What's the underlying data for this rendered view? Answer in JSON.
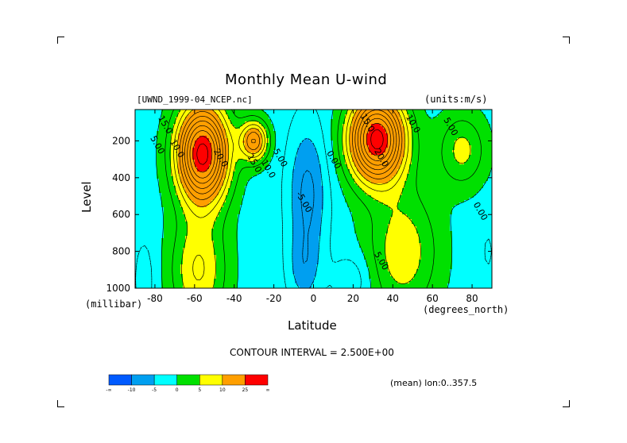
{
  "chart_data": {
    "type": "contour",
    "title": "Monthly Mean U-wind",
    "dataset_label": "[UWND_1999-04_NCEP.nc]",
    "units_label": "(units:m/s)",
    "xlabel": "Latitude",
    "x_unit_label": "(degrees_north)",
    "ylabel": "Level",
    "y_unit_label": "(millibar)",
    "xlim": [
      -90,
      90
    ],
    "ylim": [
      1000,
      30
    ],
    "x_ticks": [
      -80,
      -60,
      -40,
      -20,
      0,
      20,
      40,
      60,
      80
    ],
    "x_tick_labels": [
      "-80",
      "-60",
      "-40",
      "-20",
      "0",
      "20",
      "40",
      "60",
      "80"
    ],
    "y_ticks": [
      200,
      400,
      600,
      800,
      1000
    ],
    "y_tick_labels": [
      "200",
      "400",
      "600",
      "800",
      "1000"
    ],
    "contour_interval_text": "CONTOUR INTERVAL = 2.500E+00",
    "mean_text": "(mean) lon:0..357.5",
    "contour_labels": [
      {
        "text": "5.00",
        "x": -80,
        "y": 230
      },
      {
        "text": "10.0",
        "x": -70,
        "y": 250
      },
      {
        "text": "15.0",
        "x": -76,
        "y": 120
      },
      {
        "text": "20.0",
        "x": -48,
        "y": 300
      },
      {
        "text": "15.0",
        "x": -31,
        "y": 330
      },
      {
        "text": "10.0",
        "x": -24,
        "y": 360
      },
      {
        "text": "5.00",
        "x": -18,
        "y": 300
      },
      {
        "text": "-5.00",
        "x": -6,
        "y": 540
      },
      {
        "text": "0.00",
        "x": 9,
        "y": 310
      },
      {
        "text": "15.0",
        "x": 26,
        "y": 110
      },
      {
        "text": "10.0",
        "x": 49,
        "y": 115
      },
      {
        "text": "5.00",
        "x": 68,
        "y": 130
      },
      {
        "text": "20.0",
        "x": 33,
        "y": 300
      },
      {
        "text": "5.00",
        "x": 33,
        "y": 860
      },
      {
        "text": "0.00",
        "x": 83,
        "y": 590
      }
    ],
    "colorbar": {
      "colors": [
        "#005aff",
        "#009ff0",
        "#00ffff",
        "#00e000",
        "#ffff00",
        "#ff9f00",
        "#ff0000"
      ],
      "tick_labels": [
        "-∞",
        "-10",
        "-5",
        "0",
        "5",
        "10",
        "25",
        "∞"
      ]
    },
    "fields": {
      "southern_jet": {
        "lat": -56,
        "pressure": 270,
        "max_ms": 30
      },
      "southern_secondary_jet": {
        "lat": -30,
        "pressure": 200,
        "max_ms": 27
      },
      "northern_jet": {
        "lat": 32,
        "pressure": 190,
        "max_ms": 30
      },
      "tropical_easterlies": {
        "lat": -3,
        "pressure": 480,
        "min_ms": -7
      }
    }
  }
}
